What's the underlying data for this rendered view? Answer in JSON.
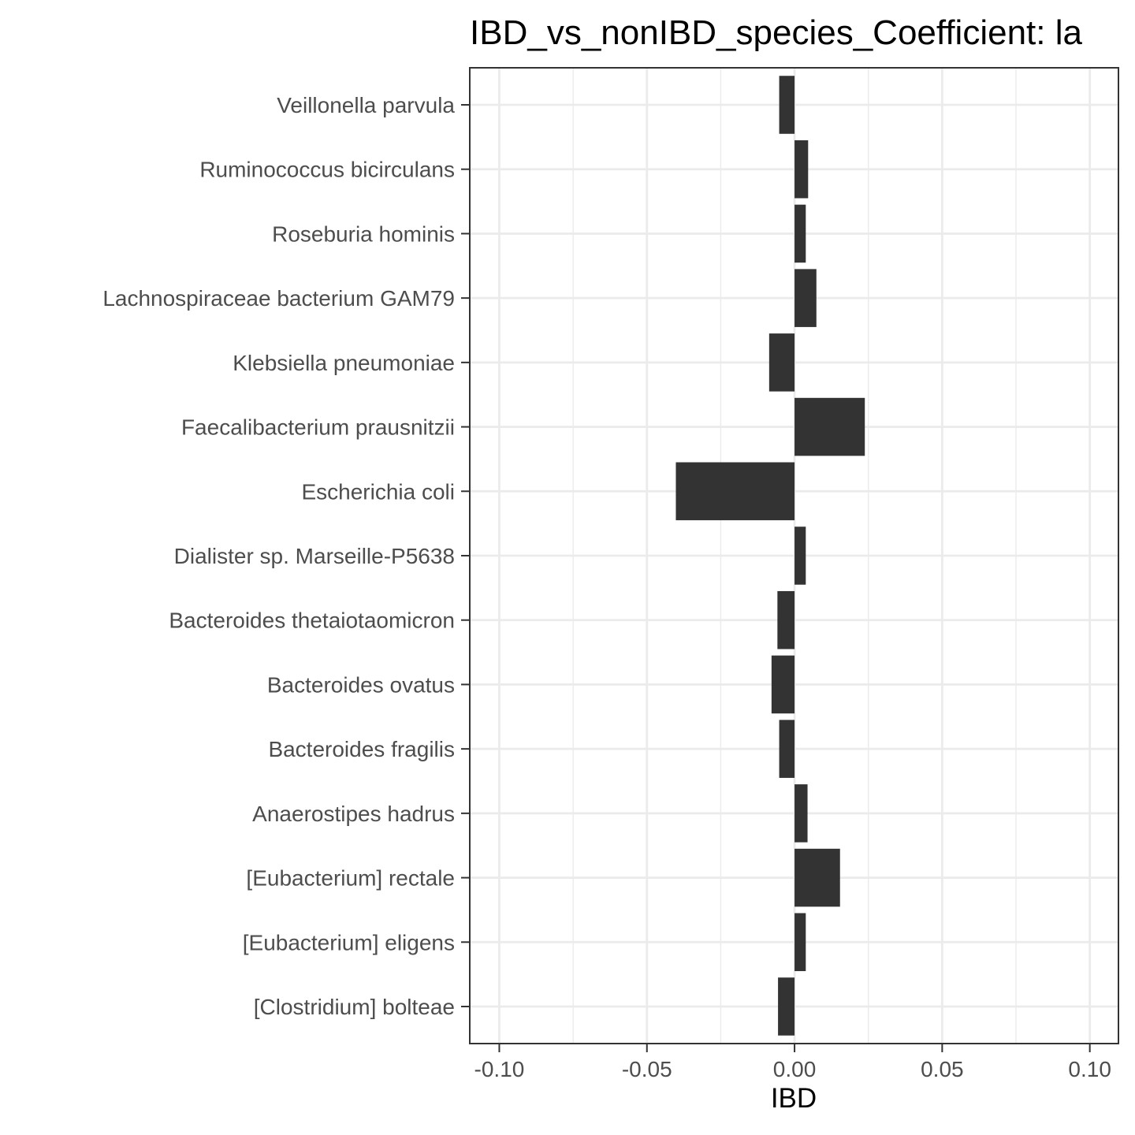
{
  "chart_data": {
    "type": "bar",
    "orientation": "horizontal",
    "title": "IBD_vs_nonIBD_species_Coefficient: la",
    "xlabel": "IBD",
    "ylabel": "",
    "categories": [
      "Veillonella parvula",
      "Ruminococcus bicirculans",
      "Roseburia hominis",
      "Lachnospiraceae bacterium GAM79",
      "Klebsiella pneumoniae",
      "Faecalibacterium prausnitzii",
      "Escherichia coli",
      "Dialister sp. Marseille-P5638",
      "Bacteroides thetaiotaomicron",
      "Bacteroides ovatus",
      "Bacteroides fragilis",
      "Anaerostipes hadrus",
      "[Eubacterium] rectale",
      "[Eubacterium] eligens",
      "[Clostridium] bolteae"
    ],
    "values": [
      -0.0052,
      0.0046,
      0.0038,
      0.0074,
      -0.0086,
      0.0238,
      -0.0402,
      0.0038,
      -0.0058,
      -0.0078,
      -0.0052,
      0.0044,
      0.0154,
      0.0038,
      -0.0056
    ],
    "xlim": [
      -0.11,
      0.1097
    ],
    "xticks": [
      "-0.10",
      "-0.05",
      "0.00",
      "0.05",
      "0.10"
    ],
    "xtick_values": [
      -0.1,
      -0.05,
      0,
      0.05,
      0.1
    ],
    "grid": true,
    "legend": "none",
    "colors": {
      "bar": "#333333",
      "grid": "#ebebeb",
      "panel_border": "#333333",
      "background": "#ffffff"
    }
  }
}
